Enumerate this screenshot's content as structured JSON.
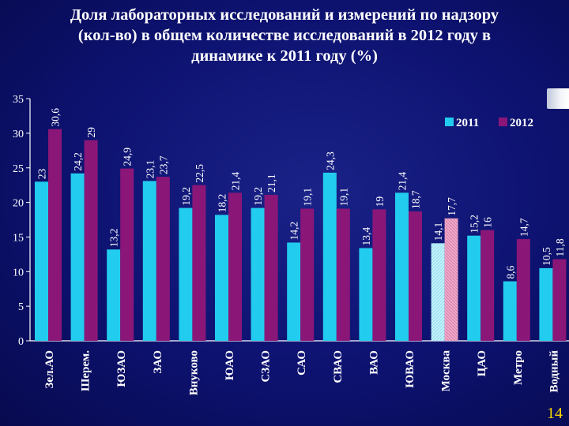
{
  "title": "Доля лабораторных исследований и измерений по надзору\n(кол-во) в общем количестве исследований в 2012 году в\nдинамике к 2011 году (%)",
  "page_number": "14",
  "colors": {
    "series_2011": "#22ccee",
    "series_2012": "#8a1778",
    "highlight_2011": "#c6f2fb",
    "highlight_2012": "#f0aacb",
    "text": "#ffffff",
    "page_number": "#ffd700"
  },
  "chart_data": {
    "type": "bar",
    "title": "",
    "xlabel": "",
    "ylabel": "",
    "ylim": [
      0,
      35
    ],
    "yticks": [
      0,
      5,
      10,
      15,
      20,
      25,
      30,
      35
    ],
    "grid": false,
    "legend_position": "top-right",
    "categories": [
      "Зел.АО",
      "Шерем.",
      "ЮЗАО",
      "ЗАО",
      "Внуково",
      "ЮАО",
      "СЗАО",
      "САО",
      "СВАО",
      "ВАО",
      "ЮВАО",
      "Москва",
      "ЦАО",
      "Метро",
      "Водный"
    ],
    "highlight_category": "Москва",
    "series": [
      {
        "name": "2011",
        "values": [
          23,
          24.2,
          13.2,
          23.1,
          19.2,
          18.2,
          19.2,
          14.2,
          24.3,
          13.4,
          21.4,
          14.1,
          15.2,
          8.6,
          10.5
        ]
      },
      {
        "name": "2012",
        "values": [
          30.6,
          29,
          24.9,
          23.7,
          22.5,
          21.4,
          21.1,
          19.1,
          19.1,
          19,
          18.7,
          17.7,
          16,
          14.7,
          11.8
        ]
      }
    ],
    "value_labels": [
      [
        "23",
        "24,2",
        "13,2",
        "23,1",
        "19,2",
        "18,2",
        "19,2",
        "14,2",
        "24,3",
        "13,4",
        "21,4",
        "14,1",
        "15,2",
        "8,6",
        "10,5"
      ],
      [
        "30,6",
        "29",
        "24,9",
        "23,7",
        "22,5",
        "21,4",
        "21,1",
        "19,1",
        "19,1",
        "19",
        "18,7",
        "17,7",
        "16",
        "14,7",
        "11,8"
      ]
    ]
  }
}
